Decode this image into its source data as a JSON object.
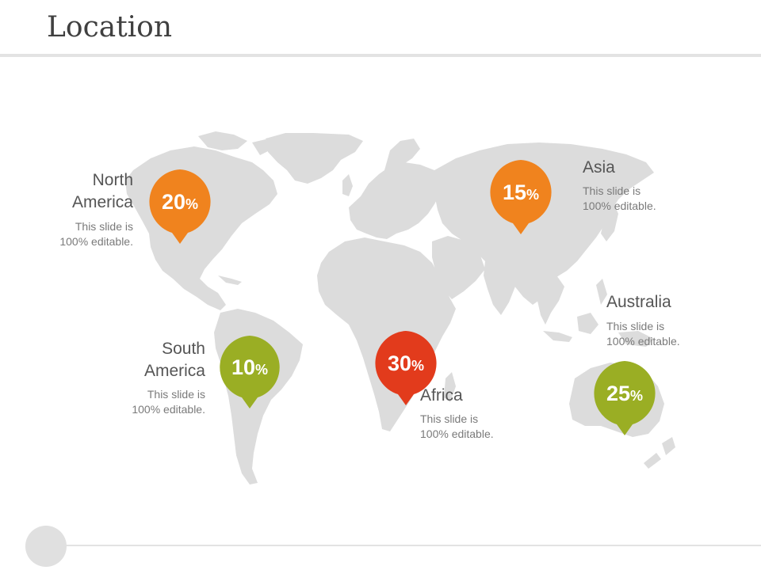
{
  "title": "Location",
  "regions": [
    {
      "id": "north-america",
      "name_line1": "North",
      "name_line2": "America",
      "desc_line1": "This slide is",
      "desc_line2": "100% editable.",
      "value": "20",
      "unit": "%",
      "color": "#f0831e"
    },
    {
      "id": "south-america",
      "name_line1": "South",
      "name_line2": "America",
      "desc_line1": "This slide is",
      "desc_line2": "100% editable.",
      "value": "10",
      "unit": "%",
      "color": "#9aae24"
    },
    {
      "id": "africa",
      "name_line1": "Africa",
      "desc_line1": "This slide is",
      "desc_line2": "100% editable.",
      "value": "30",
      "unit": "%",
      "color": "#e23b1c"
    },
    {
      "id": "asia",
      "name_line1": "Asia",
      "desc_line1": "This slide is",
      "desc_line2": "100% editable.",
      "value": "15",
      "unit": "%",
      "color": "#f0831e"
    },
    {
      "id": "australia",
      "name_line1": "Australia",
      "desc_line1": "This slide is",
      "desc_line2": "100% editable.",
      "value": "25",
      "unit": "%",
      "color": "#9aae24"
    }
  ],
  "colors": {
    "map": "#dcdcdc",
    "divider": "#e3e3e3",
    "text_dark": "#404040"
  }
}
